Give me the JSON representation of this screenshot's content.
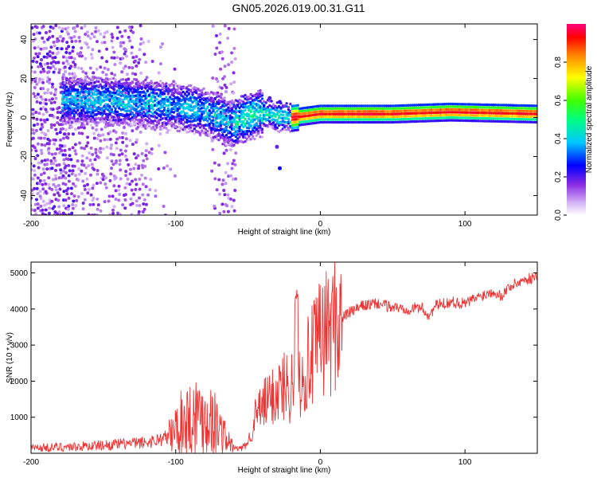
{
  "title": "GN05.2026.019.00.31.G11",
  "chart_data": [
    {
      "type": "heatmap",
      "xlabel": "Height of straight line (km)",
      "ylabel": "Frequency (Hz)",
      "xlim": [
        -200,
        150
      ],
      "ylim": [
        -50,
        48
      ],
      "xticks": [
        -200,
        -100,
        0,
        100
      ],
      "yticks": [
        -40,
        -20,
        0,
        20,
        40
      ],
      "colorbar": {
        "label": "Normalized spectral amplitude",
        "range": [
          0,
          1
        ],
        "ticks": [
          0.0,
          0.2,
          0.4,
          0.6,
          0.8
        ]
      },
      "ridge_description": "noisy scatter below -120 km; dominant band near 8 Hz at -160 km drifting to about 0 Hz by -50 km; stable line near 2 Hz from -20 km to 150 km",
      "ridge_points": [
        {
          "x": -170,
          "y": 9
        },
        {
          "x": -150,
          "y": 9
        },
        {
          "x": -130,
          "y": 8
        },
        {
          "x": -110,
          "y": 7
        },
        {
          "x": -90,
          "y": 5
        },
        {
          "x": -75,
          "y": 2
        },
        {
          "x": -62,
          "y": -3
        },
        {
          "x": -52,
          "y": 0
        },
        {
          "x": -42,
          "y": 3
        },
        {
          "x": -32,
          "y": 1
        },
        {
          "x": -20,
          "y": 0
        },
        {
          "x": 0,
          "y": 2
        },
        {
          "x": 50,
          "y": 2
        },
        {
          "x": 90,
          "y": 3
        },
        {
          "x": 150,
          "y": 2
        }
      ]
    },
    {
      "type": "line",
      "xlabel": "Height of straight line (km)",
      "ylabel": "SNR (10 * v/v)",
      "xlim": [
        -200,
        150
      ],
      "ylim": [
        0,
        5300
      ],
      "xticks": [
        -200,
        -100,
        0,
        100
      ],
      "yticks": [
        1000,
        2000,
        3000,
        4000,
        5000
      ],
      "color": "#ee3333",
      "series": [
        {
          "name": "SNR",
          "x": [
            -200,
            -180,
            -160,
            -140,
            -120,
            -105,
            -95,
            -85,
            -75,
            -65,
            -60,
            -55,
            -50,
            -45,
            -40,
            -35,
            -30,
            -25,
            -20,
            -17,
            -15,
            -10,
            -5,
            0,
            10,
            20,
            30,
            40,
            50,
            60,
            70,
            75,
            80,
            90,
            100,
            110,
            120,
            125,
            130,
            140,
            150
          ],
          "y": [
            150,
            170,
            200,
            250,
            300,
            450,
            900,
            1100,
            950,
            400,
            150,
            120,
            300,
            1000,
            1300,
            1500,
            1700,
            1900,
            1800,
            3600,
            2100,
            2400,
            2700,
            3200,
            3600,
            3900,
            4100,
            4150,
            4050,
            4000,
            4050,
            3800,
            4100,
            4200,
            4150,
            4350,
            4500,
            4350,
            4600,
            4800,
            4900
          ]
        }
      ]
    }
  ]
}
